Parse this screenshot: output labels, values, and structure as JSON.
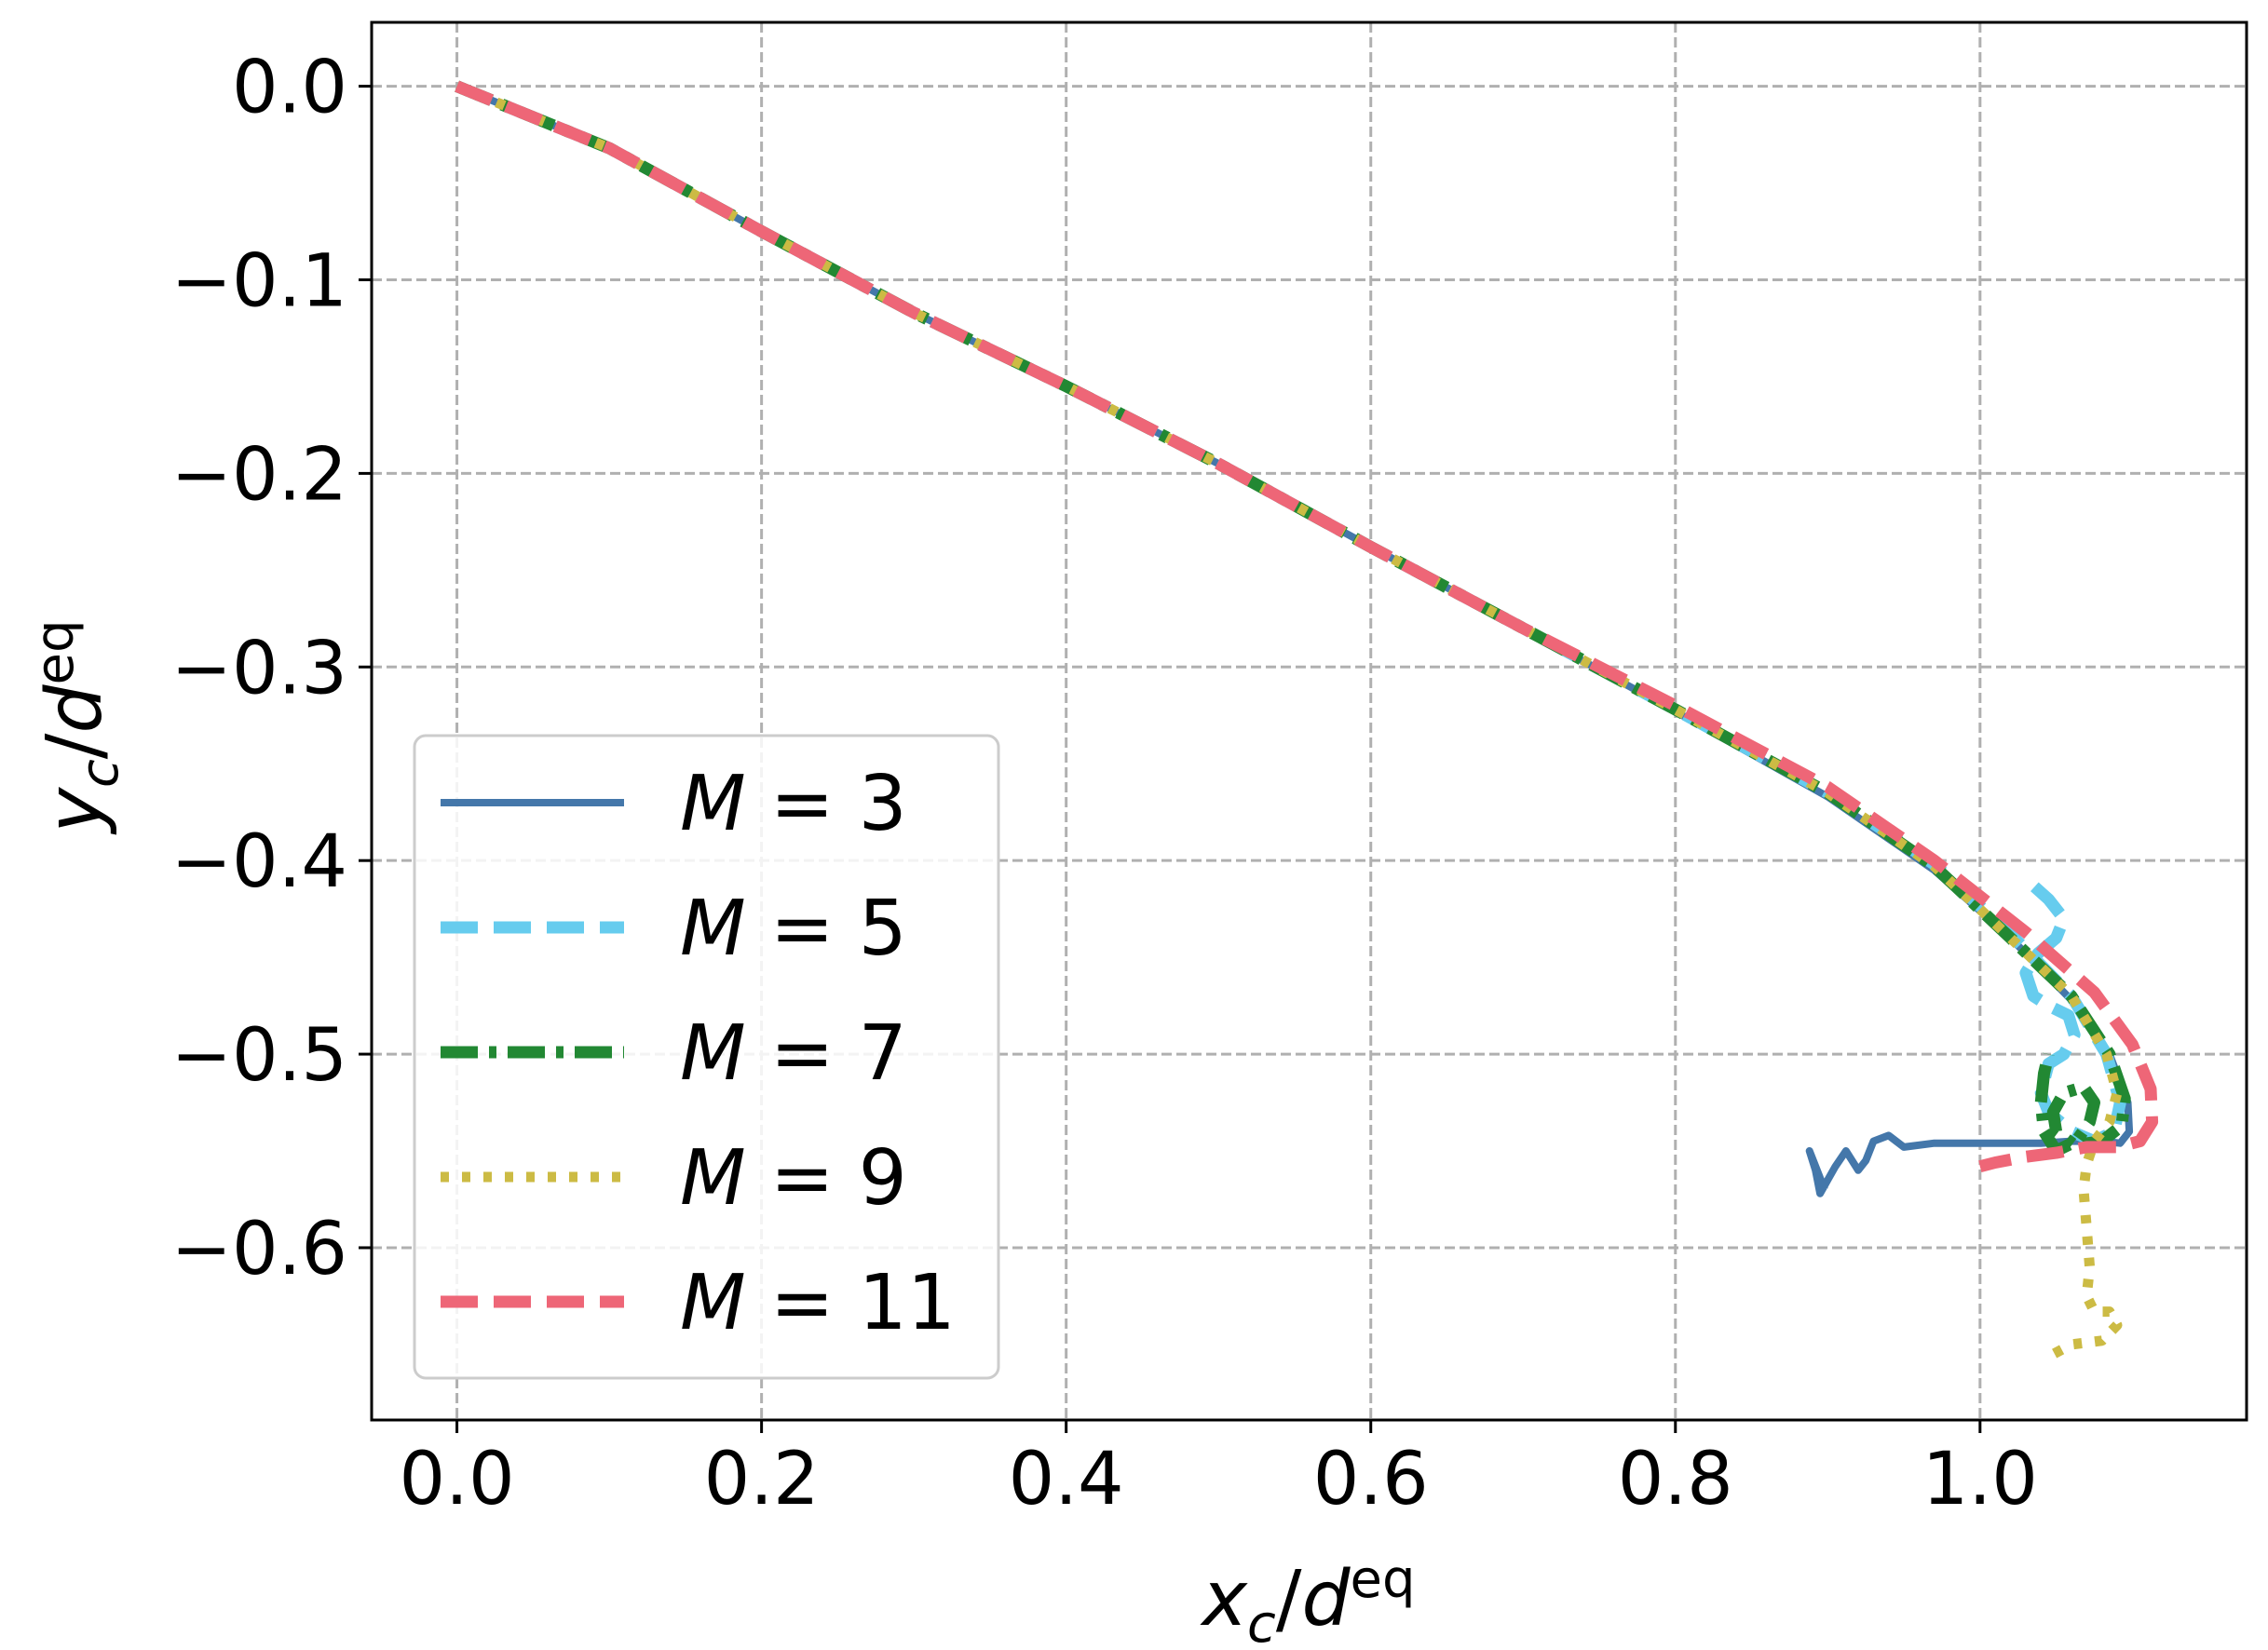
{
  "chart_data": {
    "type": "line",
    "xlabel": {
      "base": "x",
      "sub": "c",
      "sep": "/",
      "denom": "d",
      "sup": "eq"
    },
    "ylabel": {
      "base": "y",
      "sub": "c",
      "sep": "/",
      "denom": "d",
      "sup": "eq"
    },
    "xlim": [
      -0.056,
      1.175
    ],
    "ylim": [
      -0.689,
      0.033
    ],
    "x_ticks": [
      0.0,
      0.2,
      0.4,
      0.6,
      0.8,
      1.0
    ],
    "x_tick_labels": [
      "0.0",
      "0.2",
      "0.4",
      "0.6",
      "0.8",
      "1.0"
    ],
    "y_ticks": [
      0.0,
      -0.1,
      -0.2,
      -0.3,
      -0.4,
      -0.5,
      -0.6
    ],
    "y_tick_labels": [
      "0.0",
      "−0.1",
      "−0.2",
      "−0.3",
      "−0.4",
      "−0.5",
      "−0.6"
    ],
    "grid": true,
    "legend_position": "lower-left",
    "series": [
      {
        "name": "M = 3",
        "label_var": "M",
        "label_eq": " = ",
        "label_val": "3",
        "color": "#4477aa",
        "style": "solid",
        "points": [
          [
            0,
            0
          ],
          [
            0.1,
            -0.032
          ],
          [
            0.2,
            -0.075
          ],
          [
            0.3,
            -0.117
          ],
          [
            0.4,
            -0.155
          ],
          [
            0.5,
            -0.195
          ],
          [
            0.6,
            -0.238
          ],
          [
            0.7,
            -0.28
          ],
          [
            0.8,
            -0.323
          ],
          [
            0.9,
            -0.367
          ],
          [
            0.97,
            -0.405
          ],
          [
            1.02,
            -0.44
          ],
          [
            1.06,
            -0.472
          ],
          [
            1.085,
            -0.5
          ],
          [
            1.097,
            -0.525
          ],
          [
            1.098,
            -0.54
          ],
          [
            1.092,
            -0.546
          ],
          [
            1.08,
            -0.545
          ],
          [
            1.06,
            -0.545
          ],
          [
            1.04,
            -0.546
          ],
          [
            1.0,
            -0.546
          ],
          [
            0.97,
            -0.546
          ],
          [
            0.95,
            -0.548
          ],
          [
            0.94,
            -0.542
          ],
          [
            0.93,
            -0.545
          ],
          [
            0.925,
            -0.555
          ],
          [
            0.92,
            -0.56
          ],
          [
            0.912,
            -0.55
          ],
          [
            0.905,
            -0.558
          ],
          [
            0.9,
            -0.565
          ],
          [
            0.895,
            -0.572
          ],
          [
            0.892,
            -0.56
          ],
          [
            0.888,
            -0.55
          ],
          [
            0.893,
            -0.56
          ],
          [
            0.898,
            -0.57
          ]
        ]
      },
      {
        "name": "M = 5",
        "label_var": "M",
        "label_eq": " = ",
        "label_val": "5",
        "color": "#66ccee",
        "style": "dashed",
        "points": [
          [
            0,
            0
          ],
          [
            0.1,
            -0.032
          ],
          [
            0.2,
            -0.075
          ],
          [
            0.3,
            -0.117
          ],
          [
            0.4,
            -0.155
          ],
          [
            0.5,
            -0.195
          ],
          [
            0.6,
            -0.238
          ],
          [
            0.7,
            -0.28
          ],
          [
            0.8,
            -0.322
          ],
          [
            0.9,
            -0.365
          ],
          [
            0.97,
            -0.402
          ],
          [
            1.02,
            -0.438
          ],
          [
            1.06,
            -0.47
          ],
          [
            1.083,
            -0.5
          ],
          [
            1.092,
            -0.525
          ],
          [
            1.088,
            -0.54
          ],
          [
            1.075,
            -0.545
          ],
          [
            1.06,
            -0.54
          ],
          [
            1.045,
            -0.53
          ],
          [
            1.04,
            -0.52
          ],
          [
            1.045,
            -0.505
          ],
          [
            1.055,
            -0.5
          ],
          [
            1.062,
            -0.49
          ],
          [
            1.058,
            -0.48
          ],
          [
            1.045,
            -0.475
          ],
          [
            1.035,
            -0.47
          ],
          [
            1.03,
            -0.458
          ],
          [
            1.038,
            -0.448
          ],
          [
            1.05,
            -0.44
          ],
          [
            1.055,
            -0.43
          ],
          [
            1.045,
            -0.42
          ],
          [
            1.035,
            -0.413
          ]
        ]
      },
      {
        "name": "M = 7",
        "label_var": "M",
        "label_eq": " = ",
        "label_val": "7",
        "color": "#228833",
        "style": "dashdot",
        "points": [
          [
            0,
            0
          ],
          [
            0.1,
            -0.032
          ],
          [
            0.2,
            -0.075
          ],
          [
            0.3,
            -0.117
          ],
          [
            0.4,
            -0.155
          ],
          [
            0.5,
            -0.195
          ],
          [
            0.6,
            -0.238
          ],
          [
            0.7,
            -0.28
          ],
          [
            0.8,
            -0.322
          ],
          [
            0.9,
            -0.365
          ],
          [
            0.97,
            -0.403
          ],
          [
            1.02,
            -0.44
          ],
          [
            1.06,
            -0.47
          ],
          [
            1.085,
            -0.5
          ],
          [
            1.095,
            -0.523
          ],
          [
            1.093,
            -0.537
          ],
          [
            1.08,
            -0.545
          ],
          [
            1.062,
            -0.547
          ],
          [
            1.05,
            -0.54
          ],
          [
            1.048,
            -0.53
          ],
          [
            1.055,
            -0.52
          ],
          [
            1.068,
            -0.517
          ],
          [
            1.075,
            -0.525
          ],
          [
            1.072,
            -0.535
          ],
          [
            1.063,
            -0.545
          ],
          [
            1.05,
            -0.55
          ],
          [
            1.042,
            -0.54
          ],
          [
            1.04,
            -0.525
          ],
          [
            1.042,
            -0.51
          ],
          [
            1.045,
            -0.5
          ]
        ]
      },
      {
        "name": "M = 9",
        "label_var": "M",
        "label_eq": " = ",
        "label_val": "9",
        "color": "#ccbb44",
        "style": "dotted",
        "points": [
          [
            0,
            0
          ],
          [
            0.1,
            -0.032
          ],
          [
            0.2,
            -0.075
          ],
          [
            0.3,
            -0.117
          ],
          [
            0.4,
            -0.155
          ],
          [
            0.5,
            -0.195
          ],
          [
            0.6,
            -0.238
          ],
          [
            0.7,
            -0.28
          ],
          [
            0.8,
            -0.322
          ],
          [
            0.9,
            -0.365
          ],
          [
            0.97,
            -0.403
          ],
          [
            1.02,
            -0.44
          ],
          [
            1.06,
            -0.47
          ],
          [
            1.083,
            -0.5
          ],
          [
            1.09,
            -0.52
          ],
          [
            1.085,
            -0.535
          ],
          [
            1.075,
            -0.545
          ],
          [
            1.07,
            -0.557
          ],
          [
            1.068,
            -0.57
          ],
          [
            1.07,
            -0.59
          ],
          [
            1.072,
            -0.61
          ],
          [
            1.07,
            -0.625
          ],
          [
            1.075,
            -0.633
          ],
          [
            1.085,
            -0.633
          ],
          [
            1.09,
            -0.64
          ],
          [
            1.08,
            -0.648
          ],
          [
            1.06,
            -0.65
          ],
          [
            1.048,
            -0.655
          ]
        ]
      },
      {
        "name": "M = 11",
        "label_var": "M",
        "label_eq": " = ",
        "label_val": "11",
        "color": "#ee6677",
        "style": "dashed",
        "points": [
          [
            0,
            0
          ],
          [
            0.1,
            -0.032
          ],
          [
            0.2,
            -0.075
          ],
          [
            0.3,
            -0.117
          ],
          [
            0.4,
            -0.155
          ],
          [
            0.5,
            -0.195
          ],
          [
            0.6,
            -0.238
          ],
          [
            0.7,
            -0.28
          ],
          [
            0.8,
            -0.32
          ],
          [
            0.9,
            -0.362
          ],
          [
            0.97,
            -0.4
          ],
          [
            1.03,
            -0.437
          ],
          [
            1.075,
            -0.468
          ],
          [
            1.1,
            -0.495
          ],
          [
            1.112,
            -0.518
          ],
          [
            1.113,
            -0.535
          ],
          [
            1.105,
            -0.545
          ],
          [
            1.09,
            -0.548
          ],
          [
            1.07,
            -0.548
          ],
          [
            1.05,
            -0.551
          ],
          [
            1.03,
            -0.553
          ],
          [
            1.01,
            -0.556
          ],
          [
            1.0,
            -0.558
          ]
        ]
      }
    ]
  }
}
